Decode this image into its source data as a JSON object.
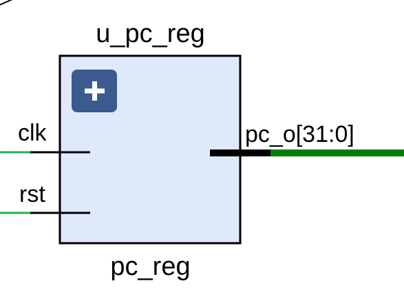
{
  "cell": {
    "instance_name": "u_pc_reg",
    "type_name": "pc_reg",
    "expand_icon": "plus-icon"
  },
  "ports": {
    "inputs": [
      {
        "name": "clk"
      },
      {
        "name": "rst"
      }
    ],
    "outputs": [
      {
        "name": "pc_o[31:0]"
      }
    ]
  },
  "colors": {
    "cell_fill": "#dfe9f9",
    "cell_border": "#000000",
    "net_wire": "#22b14c",
    "bus_wire": "#008000",
    "pin": "#000000",
    "expand_button": "#3b5a8e",
    "expand_glyph": "#ffffff"
  }
}
